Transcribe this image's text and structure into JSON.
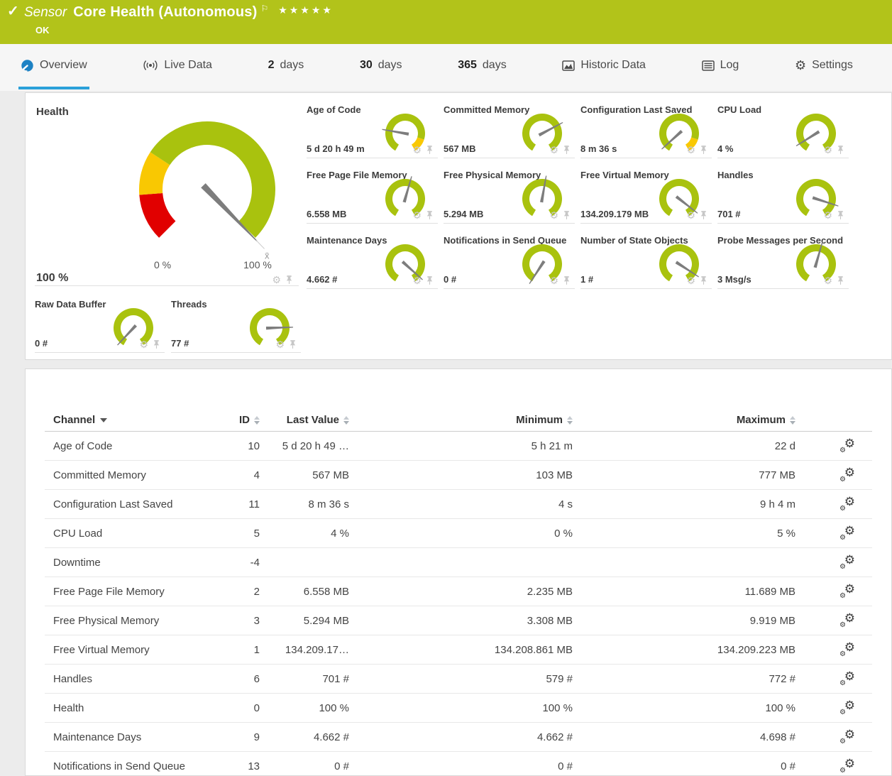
{
  "colors": {
    "header_green": "#b2c31a",
    "gauge_green": "#a9c20e",
    "gauge_yellow": "#f9c802",
    "gauge_red": "#e10000",
    "needle": "#7d7d7d",
    "tab_underline_blue": "#2ba0d9",
    "overview_icon_blue": "#1d82c4"
  },
  "icons": {
    "check": "✓",
    "flag": "⚐",
    "stars": "★★★★★",
    "gear": "⚙"
  },
  "header": {
    "kind_label": "Sensor",
    "title": "Core Health (Autonomous)",
    "status": "OK"
  },
  "tabs": [
    {
      "label": "Overview",
      "active": true
    },
    {
      "label": "Live Data"
    },
    {
      "num": "2",
      "label": "days"
    },
    {
      "num": "30",
      "label": "days"
    },
    {
      "num": "365",
      "label": "days"
    },
    {
      "label": "Historic Data"
    },
    {
      "label": "Log"
    },
    {
      "label": "Settings"
    }
  ],
  "health": {
    "title": "Health",
    "value": "100 %",
    "min_label": "0 %",
    "max_label": "100 %",
    "gauge": {
      "needle_deg": -46,
      "avg_label": "x̄",
      "segments": [
        {
          "color": "#e10000",
          "from": 0,
          "to": 0.15
        },
        {
          "color": "#f9c802",
          "from": 0.15,
          "to": 0.29
        },
        {
          "color": "#a9c20e",
          "from": 0.29,
          "to": 1
        }
      ]
    }
  },
  "gauge_tiles": [
    {
      "title": "Age of Code",
      "value": "5 d 20 h 49 m",
      "gauge": {
        "needle_deg": 170,
        "segments": [
          {
            "color": "#a9c20e",
            "from": 0,
            "to": 0.86
          },
          {
            "color": "#f9c802",
            "from": 0.86,
            "to": 1
          }
        ]
      }
    },
    {
      "title": "Committed Memory",
      "value": "567 MB",
      "gauge": {
        "needle_deg": 28,
        "segments": [
          {
            "color": "#a9c20e",
            "from": 0,
            "to": 1
          }
        ]
      }
    },
    {
      "title": "Configuration Last Saved",
      "value": "8 m 36 s",
      "gauge": {
        "needle_deg": 222,
        "segments": [
          {
            "color": "#a9c20e",
            "from": 0,
            "to": 0.86
          },
          {
            "color": "#f9c802",
            "from": 0.86,
            "to": 1
          }
        ]
      }
    },
    {
      "title": "CPU Load",
      "value": "4 %",
      "gauge": {
        "needle_deg": 212,
        "segments": [
          {
            "color": "#a9c20e",
            "from": 0,
            "to": 1
          }
        ]
      }
    },
    {
      "title": "Free Page File Memory",
      "value": "6.558 MB",
      "gauge": {
        "needle_deg": 74,
        "segments": [
          {
            "color": "#a9c20e",
            "from": 0,
            "to": 1
          }
        ]
      }
    },
    {
      "title": "Free Physical Memory",
      "value": "5.294 MB",
      "gauge": {
        "needle_deg": 80,
        "segments": [
          {
            "color": "#a9c20e",
            "from": 0,
            "to": 1
          }
        ]
      }
    },
    {
      "title": "Free Virtual Memory",
      "value": "134.209.179 MB",
      "gauge": {
        "needle_deg": -38,
        "segments": [
          {
            "color": "#a9c20e",
            "from": 0,
            "to": 1
          }
        ]
      }
    },
    {
      "title": "Handles",
      "value": "701 #",
      "gauge": {
        "needle_deg": -18,
        "segments": [
          {
            "color": "#a9c20e",
            "from": 0,
            "to": 1
          }
        ]
      }
    },
    {
      "title": "Maintenance Days",
      "value": "4.662 #",
      "gauge": {
        "needle_deg": -42,
        "segments": [
          {
            "color": "#a9c20e",
            "from": 0,
            "to": 1
          }
        ]
      }
    },
    {
      "title": "Notifications in Send Queue",
      "value": "0 #",
      "gauge": {
        "needle_deg": 237,
        "segments": [
          {
            "color": "#a9c20e",
            "from": 0,
            "to": 1
          }
        ]
      }
    },
    {
      "title": "Number of State Objects",
      "value": "1 #",
      "gauge": {
        "needle_deg": -33,
        "segments": [
          {
            "color": "#a9c20e",
            "from": 0,
            "to": 1
          }
        ]
      }
    },
    {
      "title": "Probe Messages per Second",
      "value": "3 Msg/s",
      "gauge": {
        "needle_deg": 74,
        "segments": [
          {
            "color": "#a9c20e",
            "from": 0,
            "to": 1
          }
        ]
      }
    }
  ],
  "gauge_tiles_bottom": [
    {
      "title": "Raw Data Buffer",
      "value": "0 #",
      "gauge": {
        "needle_deg": 227,
        "segments": [
          {
            "color": "#a9c20e",
            "from": 0,
            "to": 1
          }
        ]
      }
    },
    {
      "title": "Threads",
      "value": "77 #",
      "gauge": {
        "needle_deg": 2,
        "segments": [
          {
            "color": "#a9c20e",
            "from": 0,
            "to": 1
          }
        ]
      }
    }
  ],
  "table": {
    "columns": {
      "channel": "Channel",
      "id": "ID",
      "last": "Last Value",
      "min": "Minimum",
      "max": "Maximum"
    },
    "rows": [
      {
        "channel": "Age of Code",
        "id": "10",
        "last": "5 d 20 h 49 …",
        "min": "5 h 21 m",
        "max": "22 d"
      },
      {
        "channel": "Committed Memory",
        "id": "4",
        "last": "567 MB",
        "min": "103 MB",
        "max": "777 MB"
      },
      {
        "channel": "Configuration Last Saved",
        "id": "11",
        "last": "8 m 36 s",
        "min": "4 s",
        "max": "9 h 4 m"
      },
      {
        "channel": "CPU Load",
        "id": "5",
        "last": "4 %",
        "min": "0 %",
        "max": "5 %"
      },
      {
        "channel": "Downtime",
        "id": "-4",
        "last": "",
        "min": "",
        "max": ""
      },
      {
        "channel": "Free Page File Memory",
        "id": "2",
        "last": "6.558 MB",
        "min": "2.235 MB",
        "max": "11.689 MB"
      },
      {
        "channel": "Free Physical Memory",
        "id": "3",
        "last": "5.294 MB",
        "min": "3.308 MB",
        "max": "9.919 MB"
      },
      {
        "channel": "Free Virtual Memory",
        "id": "1",
        "last": "134.209.17…",
        "min": "134.208.861 MB",
        "max": "134.209.223 MB"
      },
      {
        "channel": "Handles",
        "id": "6",
        "last": "701 #",
        "min": "579 #",
        "max": "772 #"
      },
      {
        "channel": "Health",
        "id": "0",
        "last": "100 %",
        "min": "100 %",
        "max": "100 %"
      },
      {
        "channel": "Maintenance Days",
        "id": "9",
        "last": "4.662 #",
        "min": "4.662 #",
        "max": "4.698 #"
      },
      {
        "channel": "Notifications in Send Queue",
        "id": "13",
        "last": "0 #",
        "min": "0 #",
        "max": "0 #"
      }
    ]
  }
}
